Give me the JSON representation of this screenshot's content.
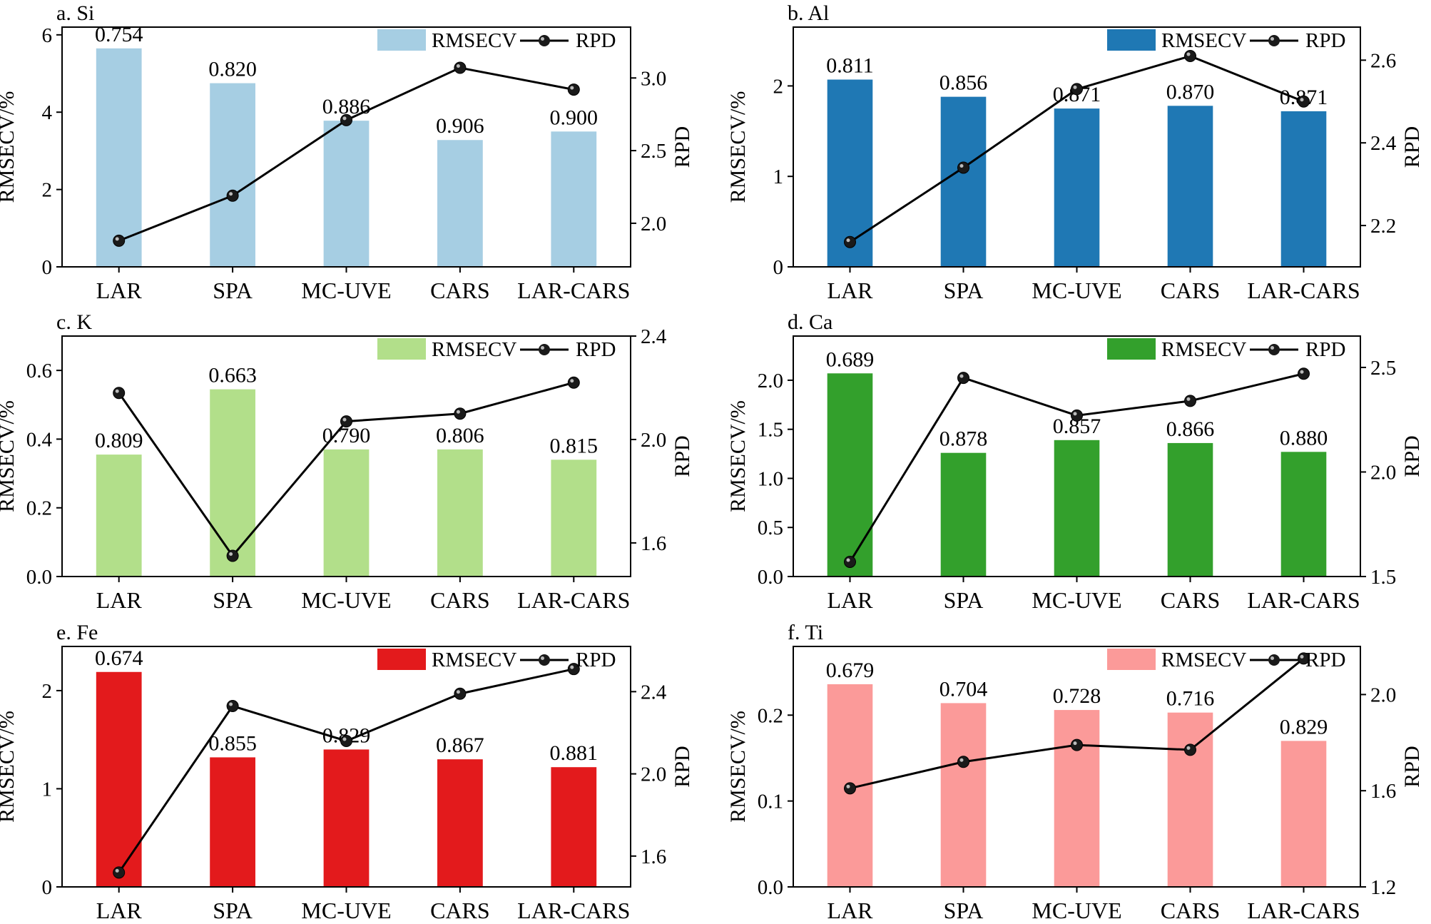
{
  "chart_data": [
    {
      "type": "bar",
      "title": "a. Si",
      "categories": [
        "LAR",
        "SPA",
        "MC-UVE",
        "CARS",
        "LAR-CARS"
      ],
      "ylabel": "RMSECV/%",
      "y2label": "RPD",
      "ylim": [
        0,
        6.2
      ],
      "yticks": [
        0,
        2,
        4,
        6
      ],
      "y2lim": [
        1.7,
        3.35
      ],
      "y2ticks": [
        2.0,
        2.5,
        3.0
      ],
      "bar_color": "#a6cee3",
      "series": [
        {
          "name": "RMSECV",
          "type": "bar",
          "axis": "left",
          "values": [
            5.65,
            4.75,
            3.78,
            3.28,
            3.5
          ]
        },
        {
          "name": "RPD",
          "type": "line",
          "axis": "right",
          "values": [
            1.88,
            2.19,
            2.71,
            3.07,
            2.92
          ]
        }
      ],
      "bar_labels": [
        "0.754",
        "0.820",
        "0.886",
        "0.906",
        "0.900"
      ],
      "legend": {
        "position": "top-right",
        "entries": [
          "RMSECV",
          "RPD"
        ]
      }
    },
    {
      "type": "bar",
      "title": "b. Al",
      "categories": [
        "LAR",
        "SPA",
        "MC-UVE",
        "CARS",
        "LAR-CARS"
      ],
      "ylabel": "RMSECV/%",
      "y2label": "RPD",
      "ylim": [
        0,
        2.65
      ],
      "yticks": [
        0,
        1,
        2
      ],
      "y2lim": [
        2.1,
        2.68
      ],
      "y2ticks": [
        2.2,
        2.4,
        2.6
      ],
      "bar_color": "#1f78b4",
      "series": [
        {
          "name": "RMSECV",
          "type": "bar",
          "axis": "left",
          "values": [
            2.07,
            1.88,
            1.75,
            1.78,
            1.72
          ]
        },
        {
          "name": "RPD",
          "type": "line",
          "axis": "right",
          "values": [
            2.16,
            2.34,
            2.53,
            2.61,
            2.5
          ]
        }
      ],
      "bar_labels": [
        "0.811",
        "0.856",
        "0.871",
        "0.870",
        "0.871"
      ],
      "legend": {
        "position": "top-right",
        "entries": [
          "RMSECV",
          "RPD"
        ]
      }
    },
    {
      "type": "bar",
      "title": "c. K",
      "categories": [
        "LAR",
        "SPA",
        "MC-UVE",
        "CARS",
        "LAR-CARS"
      ],
      "ylabel": "RMSECV/%",
      "y2label": "RPD",
      "ylim": [
        0,
        0.7
      ],
      "yticks": [
        0.0,
        0.2,
        0.4,
        0.6
      ],
      "y2lim": [
        1.47,
        2.4
      ],
      "y2ticks": [
        1.6,
        2.0,
        2.4
      ],
      "bar_color": "#b2df8a",
      "series": [
        {
          "name": "RMSECV",
          "type": "bar",
          "axis": "left",
          "values": [
            0.355,
            0.545,
            0.37,
            0.37,
            0.34
          ]
        },
        {
          "name": "RPD",
          "type": "line",
          "axis": "right",
          "values": [
            2.18,
            1.55,
            2.07,
            2.1,
            2.22
          ]
        }
      ],
      "bar_labels": [
        "0.809",
        "0.663",
        "0.790",
        "0.806",
        "0.815"
      ],
      "legend": {
        "position": "top-right",
        "entries": [
          "RMSECV",
          "RPD"
        ]
      }
    },
    {
      "type": "bar",
      "title": "d. Ca",
      "categories": [
        "LAR",
        "SPA",
        "MC-UVE",
        "CARS",
        "LAR-CARS"
      ],
      "ylabel": "RMSECV/%",
      "y2label": "RPD",
      "ylim": [
        0,
        2.45
      ],
      "yticks": [
        0.0,
        0.5,
        1.0,
        1.5,
        2.0
      ],
      "y2lim": [
        1.5,
        2.65
      ],
      "y2ticks": [
        1.5,
        2.0,
        2.5
      ],
      "bar_color": "#33a02c",
      "series": [
        {
          "name": "RMSECV",
          "type": "bar",
          "axis": "left",
          "values": [
            2.07,
            1.26,
            1.39,
            1.36,
            1.27
          ]
        },
        {
          "name": "RPD",
          "type": "line",
          "axis": "right",
          "values": [
            1.57,
            2.45,
            2.27,
            2.34,
            2.47
          ]
        }
      ],
      "bar_labels": [
        "0.689",
        "0.878",
        "0.857",
        "0.866",
        "0.880"
      ],
      "legend": {
        "position": "top-right",
        "entries": [
          "RMSECV",
          "RPD"
        ]
      }
    },
    {
      "type": "bar",
      "title": "e. Fe",
      "categories": [
        "LAR",
        "SPA",
        "MC-UVE",
        "CARS",
        "LAR-CARS"
      ],
      "ylabel": "RMSECV/%",
      "y2label": "RPD",
      "ylim": [
        0,
        2.45
      ],
      "yticks": [
        0,
        1,
        2
      ],
      "y2lim": [
        1.45,
        2.62
      ],
      "y2ticks": [
        1.6,
        2.0,
        2.4
      ],
      "bar_color": "#e31a1c",
      "series": [
        {
          "name": "RMSECV",
          "type": "bar",
          "axis": "left",
          "values": [
            2.19,
            1.32,
            1.4,
            1.3,
            1.22
          ]
        },
        {
          "name": "RPD",
          "type": "line",
          "axis": "right",
          "values": [
            1.52,
            2.33,
            2.16,
            2.39,
            2.51
          ]
        }
      ],
      "bar_labels": [
        "0.674",
        "0.855",
        "0.829",
        "0.867",
        "0.881"
      ],
      "legend": {
        "position": "top-right",
        "entries": [
          "RMSECV",
          "RPD"
        ]
      }
    },
    {
      "type": "bar",
      "title": "f. Ti",
      "categories": [
        "LAR",
        "SPA",
        "MC-UVE",
        "CARS",
        "LAR-CARS"
      ],
      "ylabel": "RMSECV/%",
      "y2label": "RPD",
      "ylim": [
        0,
        0.28
      ],
      "yticks": [
        0.0,
        0.1,
        0.2
      ],
      "y2lim": [
        1.2,
        2.2
      ],
      "y2ticks": [
        1.2,
        1.6,
        2.0
      ],
      "bar_color": "#fb9a99",
      "series": [
        {
          "name": "RMSECV",
          "type": "bar",
          "axis": "left",
          "values": [
            0.236,
            0.214,
            0.206,
            0.203,
            0.17
          ]
        },
        {
          "name": "RPD",
          "type": "line",
          "axis": "right",
          "values": [
            1.61,
            1.72,
            1.79,
            1.77,
            2.15
          ]
        }
      ],
      "bar_labels": [
        "0.679",
        "0.704",
        "0.728",
        "0.716",
        "0.829"
      ],
      "legend": {
        "position": "top-right",
        "entries": [
          "RMSECV",
          "RPD"
        ]
      }
    }
  ]
}
